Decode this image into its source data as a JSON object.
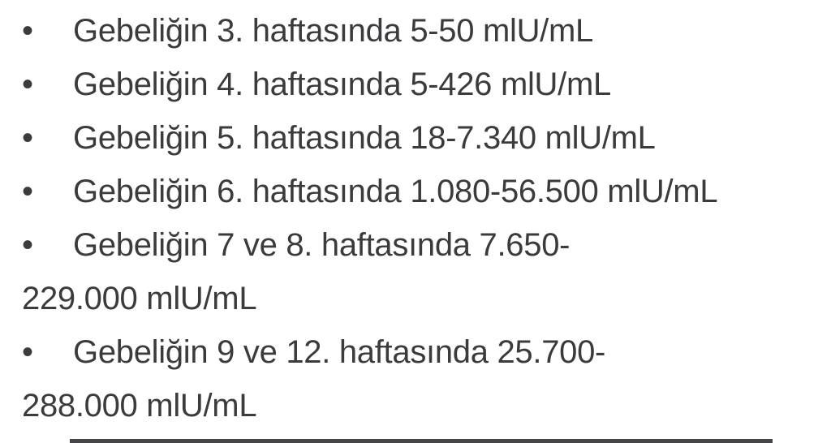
{
  "page": {
    "background_color": "#ffffff",
    "text_color": "#3b3b3e",
    "divider_color": "#454548"
  },
  "list": {
    "bullet_glyph": "•",
    "items": [
      {
        "text": "Gebeliğin 3. haftasında 5-50 mlU/mL"
      },
      {
        "text": "Gebeliğin 4. haftasında 5-426 mlU/mL"
      },
      {
        "text": "Gebeliğin 5. haftasında 18-7.340 mlU/mL"
      },
      {
        "text": "Gebeliğin 6. haftasında 1.080-56.500 mlU/mL"
      },
      {
        "text": "Gebeliğin 7 ve 8. haftasında 7.650-\n229.000 mlU/mL"
      },
      {
        "text": "Gebeliğin 9 ve 12. haftasında 25.700-\n288.000 mlU/mL"
      }
    ]
  }
}
